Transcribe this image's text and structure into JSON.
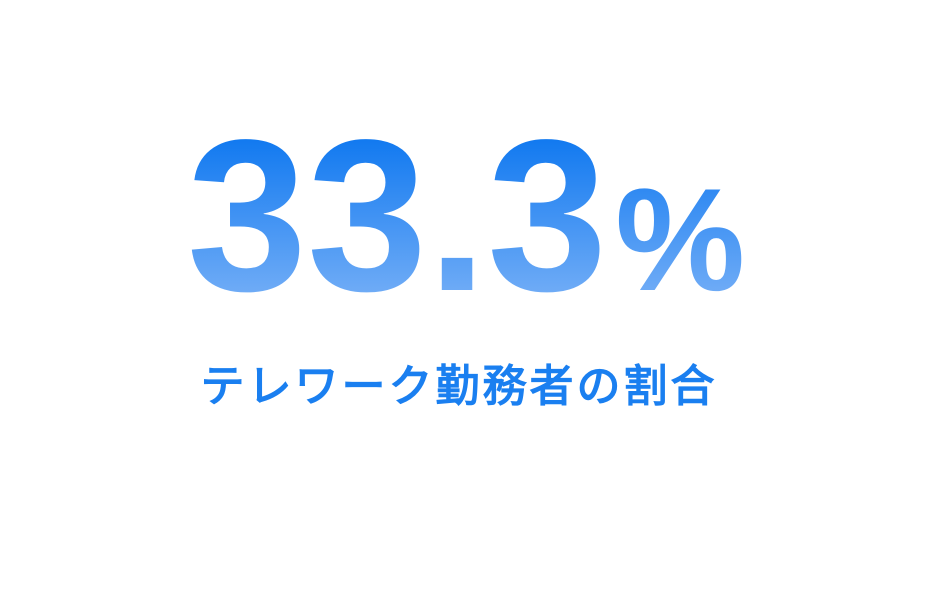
{
  "stat": {
    "value": 33.3,
    "unit": "%",
    "label": "テレワーク勤務者の割合"
  }
}
